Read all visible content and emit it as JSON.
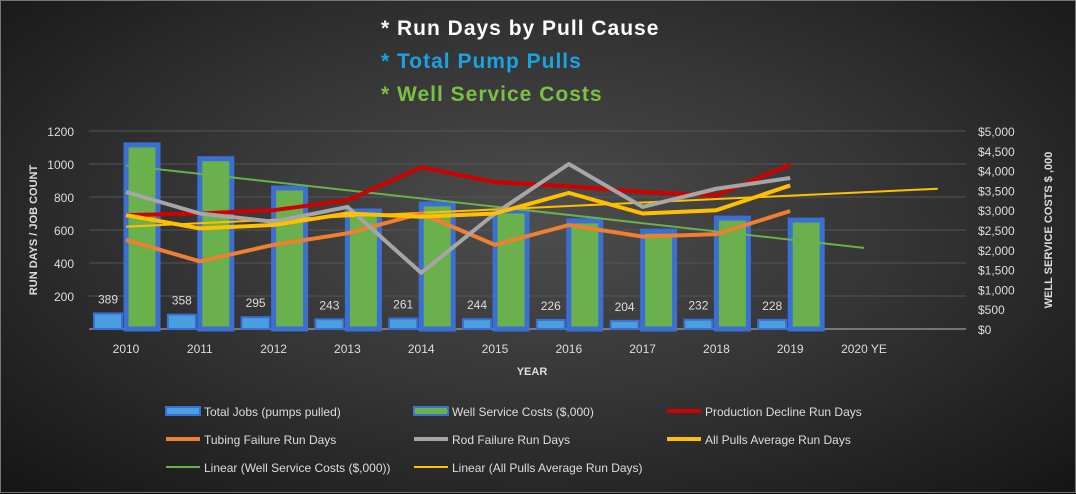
{
  "chart_data": {
    "type": "bar",
    "titles": [
      {
        "text": "* Run Days by Pull Cause",
        "color": "#ffffff"
      },
      {
        "text": "* Total Pump Pulls",
        "color": "#1aa3e0"
      },
      {
        "text": "* Well Service Costs",
        "color": "#7ac143"
      }
    ],
    "xlabel": "YEAR",
    "ylabel": "RUN DAYS / JOB COUNT",
    "y2label": "WELL SERVICE COSTS $ ,000",
    "ylim": [
      0,
      1200
    ],
    "y2lim": [
      0,
      5000
    ],
    "yticks": [
      "",
      "200",
      "400",
      "600",
      "800",
      "1000",
      "1200"
    ],
    "y2ticks": [
      "$0",
      "$500",
      "$1,000",
      "$1,500",
      "$2,000",
      "$2,500",
      "$3,000",
      "$3,500",
      "$4,000",
      "$4,500",
      "$5,000"
    ],
    "categories": [
      "2010",
      "2011",
      "2012",
      "2013",
      "2014",
      "2015",
      "2016",
      "2017",
      "2018",
      "2019",
      "2020 YE"
    ],
    "series": [
      {
        "name": "Total Jobs (pumps pulled)",
        "type": "bar",
        "axis": "left",
        "color": "#4a9fe0",
        "values": [
          389,
          358,
          295,
          243,
          261,
          244,
          226,
          204,
          232,
          228,
          null
        ],
        "labels": [
          "389",
          "358",
          "295",
          "243",
          "261",
          "244",
          "226",
          "204",
          "232",
          "228",
          ""
        ]
      },
      {
        "name": "Well Service Costs ($,000)",
        "type": "bar",
        "axis": "right",
        "color": "#6ab04c",
        "border": "#3b6fd4",
        "values": [
          4650,
          4300,
          3560,
          2980,
          3160,
          2980,
          2730,
          2470,
          2800,
          2750,
          null
        ]
      },
      {
        "name": "Production Decline Run Days",
        "type": "line",
        "axis": "left",
        "color": "#d00000",
        "values": [
          690,
          700,
          720,
          780,
          980,
          890,
          865,
          830,
          810,
          995,
          null
        ]
      },
      {
        "name": "Tubing Failure Run Days",
        "type": "line",
        "axis": "left",
        "color": "#f08030",
        "values": [
          540,
          410,
          510,
          580,
          700,
          510,
          630,
          560,
          575,
          715,
          null
        ]
      },
      {
        "name": "Rod Failure Run Days",
        "type": "line",
        "axis": "left",
        "color": "#a6a6a6",
        "values": [
          830,
          700,
          650,
          740,
          340,
          700,
          1000,
          740,
          850,
          915,
          null
        ]
      },
      {
        "name": "All Pulls Average Run Days",
        "type": "line",
        "axis": "left",
        "color": "#ffc000",
        "values": [
          690,
          610,
          630,
          700,
          680,
          700,
          825,
          700,
          720,
          870,
          null
        ]
      },
      {
        "name": "Linear (Well Service Costs ($,000))",
        "type": "trend",
        "axis": "right",
        "color": "#6ab04c",
        "from": [
          0,
          4125
        ],
        "to": [
          10,
          2050
        ]
      },
      {
        "name": "Linear (All Pulls Average Run Days)",
        "type": "trend",
        "axis": "left",
        "color": "#ffc000",
        "from": [
          0,
          620
        ],
        "to": [
          11,
          850
        ]
      }
    ]
  }
}
